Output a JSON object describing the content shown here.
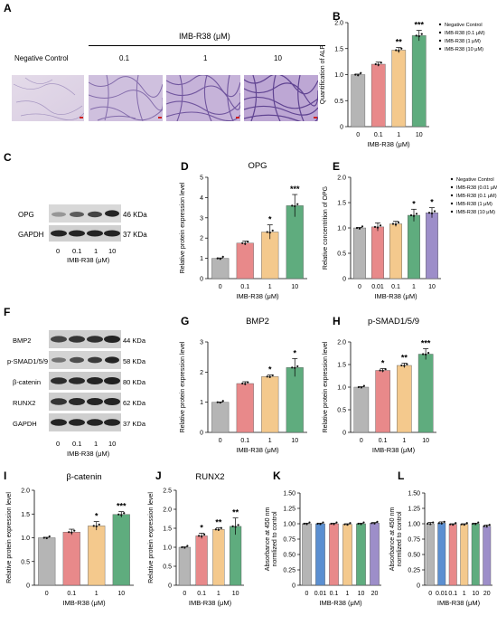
{
  "panels": {
    "A": {
      "label": "A",
      "header": "IMB-R38 (μM)",
      "images": [
        "Negative Control",
        "0.1",
        "1",
        "10"
      ]
    },
    "C": {
      "label": "C",
      "blots": [
        {
          "name": "OPG",
          "kda": "46 KDa"
        },
        {
          "name": "GAPDH",
          "kda": "37 KDa"
        }
      ],
      "lanes": [
        "0",
        "0.1",
        "1",
        "10"
      ],
      "xlabel": "IMB-R38 (μM)"
    },
    "F": {
      "label": "F",
      "blots": [
        {
          "name": "BMP2",
          "kda": "44 KDa"
        },
        {
          "name": "p-SMAD1/5/9",
          "kda": "58 KDa"
        },
        {
          "name": "β-catenin",
          "kda": "80 KDa"
        },
        {
          "name": "RUNX2",
          "kda": "62 KDa"
        },
        {
          "name": "GAPDH",
          "kda": "37 KDa"
        }
      ],
      "lanes": [
        "0",
        "0.1",
        "1",
        "10"
      ],
      "xlabel": "IMB-R38 (μM)"
    }
  },
  "colors": {
    "grey": "#b5b5b5",
    "red": "#e8898a",
    "orange": "#f4c98d",
    "green": "#5fac7e",
    "purple": "#9d8ec9",
    "blue": "#5b8fd1"
  },
  "chart_data": [
    {
      "id": "B",
      "label": "B",
      "type": "bar",
      "title": "",
      "xlabel": "IMB-R38 (μM)",
      "ylabel": "Quantification of ALP",
      "categories": [
        "0",
        "0.1",
        "1",
        "10"
      ],
      "values": [
        1.0,
        1.2,
        1.47,
        1.75
      ],
      "errors": [
        0.01,
        0.04,
        0.05,
        0.1
      ],
      "colors": [
        "#b5b5b5",
        "#e8898a",
        "#f4c98d",
        "#5fac7e"
      ],
      "sig": [
        "",
        "",
        "**",
        "***"
      ],
      "ylim": [
        0,
        2.0
      ],
      "yticks": [
        "0",
        "0.5",
        "1.0",
        "1.5",
        "2.0"
      ],
      "legend": [
        "Negative Control",
        "IMB-R38 (0.1 μM)",
        "IMB-R38 (1 μM)",
        "IMB-R38 (10 μM)"
      ]
    },
    {
      "id": "D",
      "label": "D",
      "type": "bar",
      "title": "OPG",
      "xlabel": "IMB-R38 (μM)",
      "ylabel": "Relative protein expression  level",
      "categories": [
        "0",
        "0.1",
        "1",
        "10"
      ],
      "values": [
        1.0,
        1.75,
        2.3,
        3.6
      ],
      "errors": [
        0.02,
        0.1,
        0.35,
        0.55
      ],
      "colors": [
        "#b5b5b5",
        "#e8898a",
        "#f4c98d",
        "#5fac7e"
      ],
      "sig": [
        "",
        "",
        "*",
        "***"
      ],
      "ylim": [
        0,
        5
      ],
      "yticks": [
        "0",
        "1",
        "2",
        "3",
        "4",
        "5"
      ]
    },
    {
      "id": "E",
      "label": "E",
      "type": "bar",
      "title": "",
      "xlabel": "IMB-R38 (μM)",
      "ylabel": "Relative concentrition of OPG",
      "categories": [
        "0",
        "0.01",
        "0.1",
        "1",
        "10"
      ],
      "values": [
        1.0,
        1.02,
        1.08,
        1.25,
        1.3
      ],
      "errors": [
        0.01,
        0.08,
        0.05,
        0.12,
        0.1
      ],
      "colors": [
        "#b5b5b5",
        "#e8898a",
        "#f4c98d",
        "#5fac7e",
        "#9d8ec9"
      ],
      "sig": [
        "",
        "",
        "",
        "*",
        "*"
      ],
      "ylim": [
        0,
        2.0
      ],
      "yticks": [
        "0",
        "0.5",
        "1.0",
        "1.5",
        "2.0"
      ],
      "legend": [
        "Negative Control",
        "IMB-R38 (0.01 μM)",
        "IMB-R38 (0.1 μM)",
        "IMB-R38 (1 μM)",
        "IMB-R38 (10 μM)"
      ]
    },
    {
      "id": "G",
      "label": "G",
      "type": "bar",
      "title": "BMP2",
      "xlabel": "IMB-R38 (μM)",
      "ylabel": "Relative protein expression  level",
      "categories": [
        "0",
        "0.1",
        "1",
        "10"
      ],
      "values": [
        1.0,
        1.62,
        1.85,
        2.15
      ],
      "errors": [
        0.01,
        0.06,
        0.05,
        0.3
      ],
      "colors": [
        "#b5b5b5",
        "#e8898a",
        "#f4c98d",
        "#5fac7e"
      ],
      "sig": [
        "",
        "",
        "*",
        "*"
      ],
      "ylim": [
        0,
        3
      ],
      "yticks": [
        "0",
        "1",
        "2",
        "3"
      ]
    },
    {
      "id": "H",
      "label": "H",
      "type": "bar",
      "title": "p-SMAD1/5/9",
      "xlabel": "IMB-R38 (μM)",
      "ylabel": "Relative protein expression  level",
      "categories": [
        "0",
        "0.1",
        "1",
        "10"
      ],
      "values": [
        1.0,
        1.37,
        1.48,
        1.73
      ],
      "errors": [
        0.01,
        0.04,
        0.05,
        0.12
      ],
      "colors": [
        "#b5b5b5",
        "#e8898a",
        "#f4c98d",
        "#5fac7e"
      ],
      "sig": [
        "",
        "*",
        "**",
        "***"
      ],
      "ylim": [
        0,
        2.0
      ],
      "yticks": [
        "0",
        "0.5",
        "1.0",
        "1.5",
        "2.0"
      ]
    },
    {
      "id": "I",
      "label": "I",
      "type": "bar",
      "title": "β-catenin",
      "xlabel": "IMB-R38 (μM)",
      "ylabel": "Relative protein expression  level",
      "categories": [
        "0",
        "0.1",
        "1",
        "10"
      ],
      "values": [
        1.0,
        1.12,
        1.25,
        1.49
      ],
      "errors": [
        0.01,
        0.06,
        0.09,
        0.06
      ],
      "colors": [
        "#b5b5b5",
        "#e8898a",
        "#f4c98d",
        "#5fac7e"
      ],
      "sig": [
        "",
        "",
        "*",
        "***"
      ],
      "ylim": [
        0,
        2.0
      ],
      "yticks": [
        "0",
        "0.5",
        "1.0",
        "1.5",
        "2.0"
      ]
    },
    {
      "id": "J",
      "label": "J",
      "type": "bar",
      "title": "RUNX2",
      "xlabel": "IMB-R38 (μM)",
      "ylabel": "Relative protein expression  level",
      "categories": [
        "0",
        "0.1",
        "1",
        "10"
      ],
      "values": [
        1.0,
        1.3,
        1.47,
        1.55
      ],
      "errors": [
        0.01,
        0.07,
        0.04,
        0.22
      ],
      "colors": [
        "#b5b5b5",
        "#e8898a",
        "#f4c98d",
        "#5fac7e"
      ],
      "sig": [
        "",
        "*",
        "**",
        "**"
      ],
      "ylim": [
        0,
        2.5
      ],
      "yticks": [
        "0",
        "0.5",
        "1.0",
        "1.5",
        "2.0",
        "2.5"
      ]
    },
    {
      "id": "K",
      "label": "K",
      "type": "bar",
      "title": "",
      "xlabel": "IMB-R38 (μM)",
      "ylabel": "Absorbance at 450 nm normlized to control",
      "categories": [
        "0",
        "0.01",
        "0.1",
        "1",
        "10",
        "20"
      ],
      "values": [
        1.0,
        1.0,
        1.0,
        0.99,
        1.0,
        1.01
      ],
      "errors": [
        0.01,
        0.01,
        0.01,
        0.01,
        0.01,
        0.01
      ],
      "colors": [
        "#b5b5b5",
        "#5b8fd1",
        "#e8898a",
        "#f4c98d",
        "#5fac7e",
        "#9d8ec9"
      ],
      "sig": [
        "",
        "",
        "",
        "",
        "",
        ""
      ],
      "ylim": [
        0,
        1.5
      ],
      "yticks": [
        "0",
        "0.25",
        "0.50",
        "0.75",
        "1.00",
        "1.25",
        "1.50"
      ]
    },
    {
      "id": "L",
      "label": "L",
      "type": "bar",
      "title": "",
      "xlabel": "IMB-R38 (μM)",
      "ylabel": "Absorbance at 450 nm normlized to control",
      "categories": [
        "0",
        "0.01",
        "0.1",
        "1",
        "10",
        "20"
      ],
      "values": [
        1.0,
        1.01,
        0.99,
        0.99,
        1.0,
        0.96
      ],
      "errors": [
        0.02,
        0.02,
        0.01,
        0.01,
        0.01,
        0.02
      ],
      "colors": [
        "#b5b5b5",
        "#5b8fd1",
        "#e8898a",
        "#f4c98d",
        "#5fac7e",
        "#9d8ec9"
      ],
      "sig": [
        "",
        "",
        "",
        "",
        "",
        ""
      ],
      "ylim": [
        0,
        1.5
      ],
      "yticks": [
        "0",
        "0.25",
        "0.50",
        "0.75",
        "1.00",
        "1.25",
        "1.50"
      ]
    }
  ]
}
